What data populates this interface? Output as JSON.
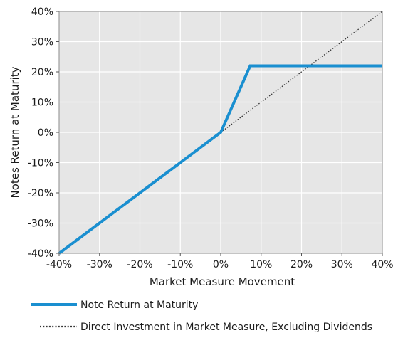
{
  "chart_data": {
    "type": "line",
    "title": "",
    "xlabel": "Market Measure Movement",
    "ylabel": "Notes Return at Maturity",
    "xlim": [
      -40,
      40
    ],
    "ylim": [
      -40,
      40
    ],
    "x_ticks": [
      -40,
      -30,
      -20,
      -10,
      0,
      10,
      20,
      30,
      40
    ],
    "y_ticks": [
      -40,
      -30,
      -20,
      -10,
      0,
      10,
      20,
      30,
      40
    ],
    "x_tick_labels": [
      "-40%",
      "-30%",
      "-20%",
      "-10%",
      "0%",
      "10%",
      "20%",
      "30%",
      "40%"
    ],
    "y_tick_labels": [
      "-40%",
      "-30%",
      "-20%",
      "-10%",
      "0%",
      "10%",
      "20%",
      "30%",
      "40%"
    ],
    "grid": true,
    "background_color": "#e6e6e6",
    "legend_position": "bottom",
    "series": [
      {
        "name": "Note Return at Maturity",
        "style": "solid",
        "color": "#1a8fd0",
        "points": [
          [
            -40,
            -40
          ],
          [
            0,
            0
          ],
          [
            7.3,
            22
          ],
          [
            40,
            22
          ]
        ]
      },
      {
        "name": "Direct Investment in Market Measure, Excluding Dividends",
        "style": "dotted",
        "color": "#333333",
        "points": [
          [
            0,
            0
          ],
          [
            40,
            40
          ]
        ]
      }
    ]
  }
}
